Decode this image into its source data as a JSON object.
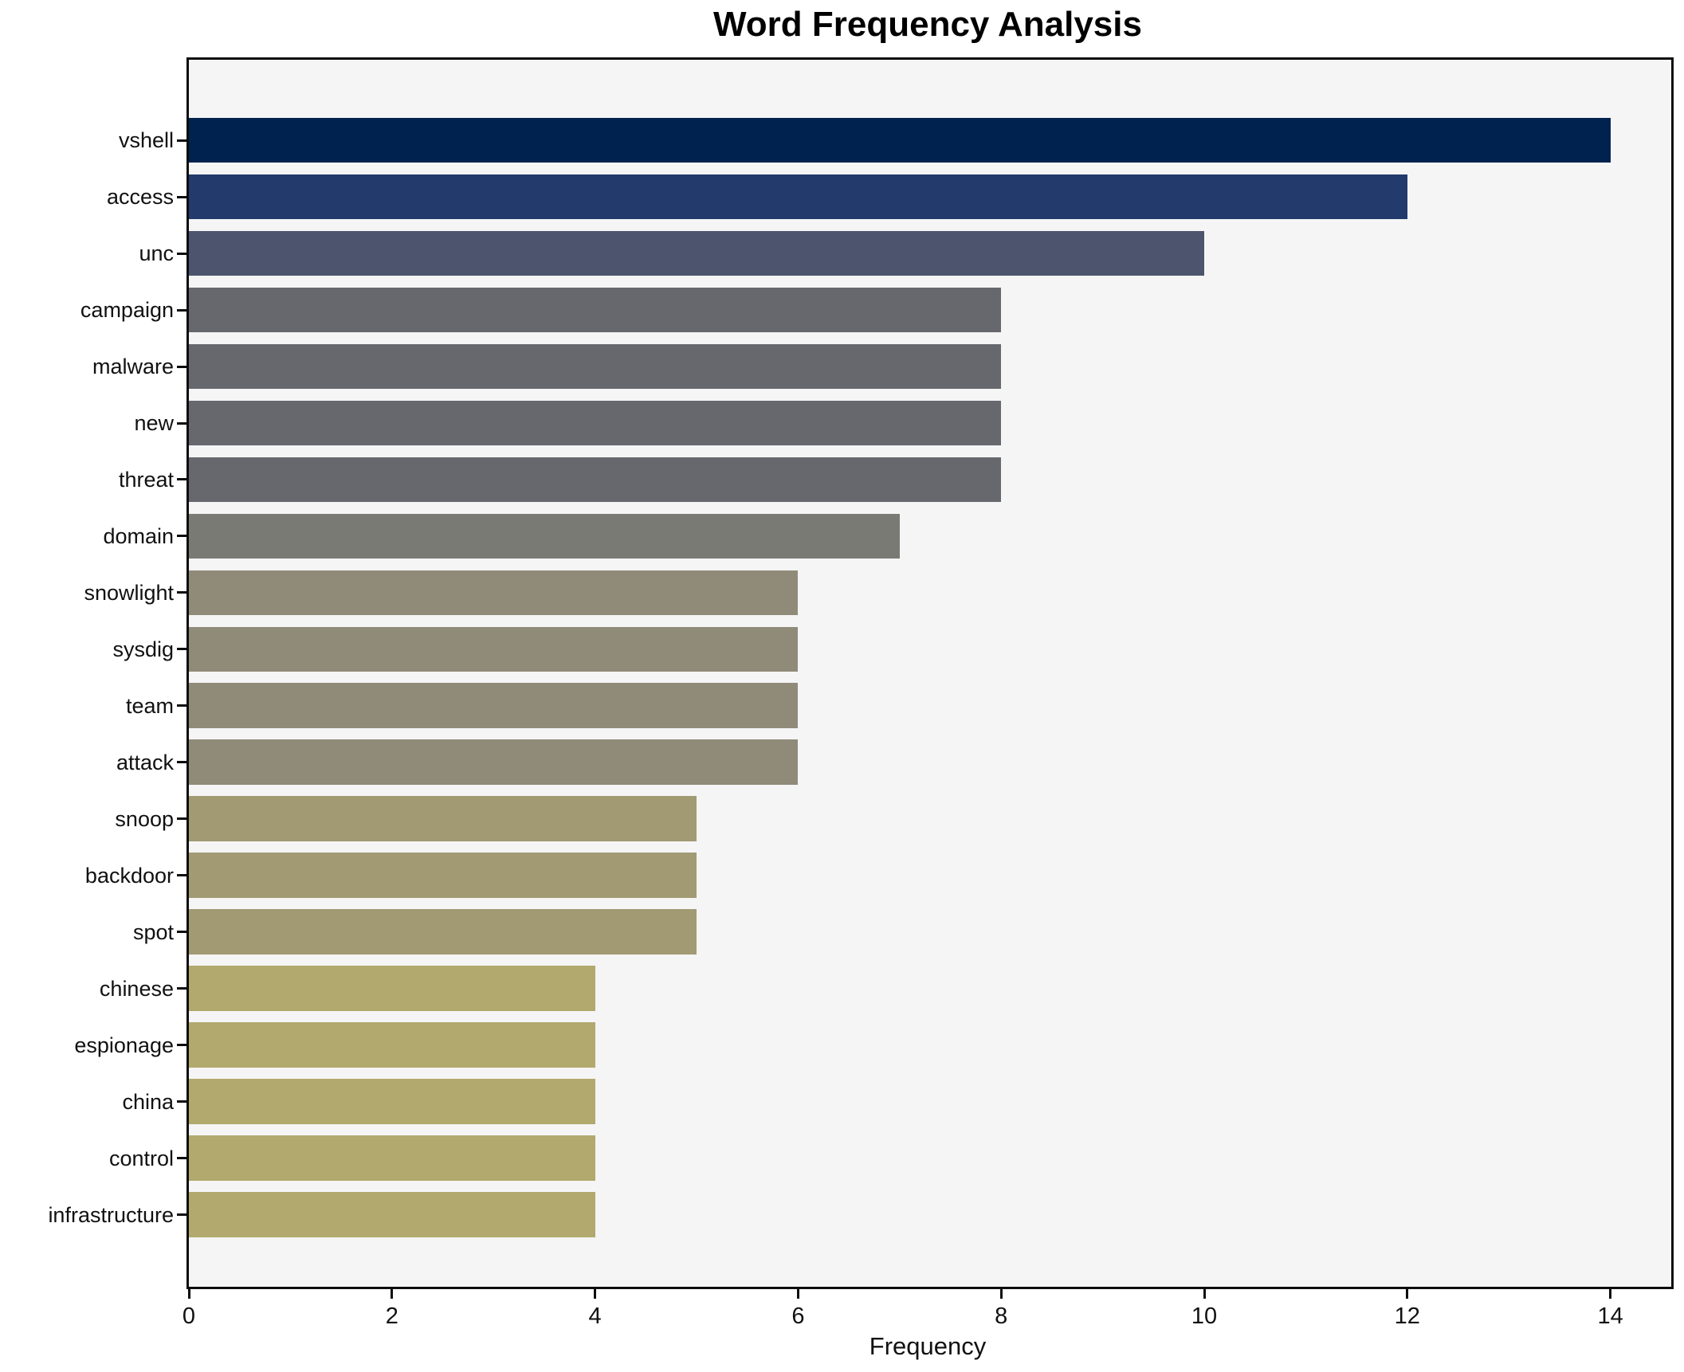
{
  "chart_data": {
    "type": "bar",
    "orientation": "horizontal",
    "title": "Word Frequency Analysis",
    "xlabel": "Frequency",
    "ylabel": "",
    "categories": [
      "vshell",
      "access",
      "unc",
      "campaign",
      "malware",
      "new",
      "threat",
      "domain",
      "snowlight",
      "sysdig",
      "team",
      "attack",
      "snoop",
      "backdoor",
      "spot",
      "chinese",
      "espionage",
      "china",
      "control",
      "infrastructure"
    ],
    "values": [
      14,
      12,
      10,
      8,
      8,
      8,
      8,
      7,
      6,
      6,
      6,
      6,
      5,
      5,
      5,
      4,
      4,
      4,
      4,
      4
    ],
    "bar_colors": [
      "#00224e",
      "#233a6c",
      "#4c546e",
      "#66686e",
      "#66686e",
      "#66686e",
      "#66686e",
      "#7a7a74",
      "#908b79",
      "#908b79",
      "#908b79",
      "#908b79",
      "#a19a73",
      "#a19a73",
      "#a19a73",
      "#b1a96d",
      "#b1a96d",
      "#b1a96d",
      "#b1a96d",
      "#b1a96d"
    ],
    "x_ticks": [
      0,
      2,
      4,
      6,
      8,
      10,
      12,
      14
    ],
    "xlim": [
      0,
      14.6
    ],
    "grid": false,
    "legend": null,
    "plot_background": "#f5f5f6",
    "figure_background": "#ffffff",
    "axis_color": "#0d0d0d"
  }
}
